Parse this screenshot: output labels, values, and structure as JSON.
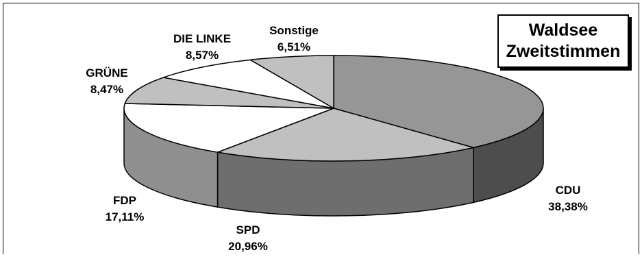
{
  "chart_data": {
    "type": "pie",
    "title_lines": [
      "Waldsee",
      "Zweitstimmen"
    ],
    "slices": [
      {
        "name": "CDU",
        "value_label": "38,38%",
        "value": 38.38,
        "color": "#969696",
        "side_color": "#4d4d4d"
      },
      {
        "name": "SPD",
        "value_label": "20,96%",
        "value": 20.96,
        "color": "#c0c0c0",
        "side_color": "#6e6e6e"
      },
      {
        "name": "FDP",
        "value_label": "17,11%",
        "value": 17.11,
        "color": "#ffffff",
        "side_color": "#8f8f8f"
      },
      {
        "name": "GRÜNE",
        "value_label": "8,47%",
        "value": 8.47,
        "color": "#c0c0c0",
        "side_color": "#8f8f8f"
      },
      {
        "name": "DIE LINKE",
        "value_label": "8,57%",
        "value": 8.57,
        "color": "#ffffff",
        "side_color": "#8f8f8f"
      },
      {
        "name": "Sonstige",
        "value_label": "6,51%",
        "value": 6.51,
        "color": "#c0c0c0",
        "side_color": "#8f8f8f"
      }
    ],
    "style": "3d-exploded-none",
    "start_angle": "12 o'clock",
    "direction": "clockwise"
  }
}
